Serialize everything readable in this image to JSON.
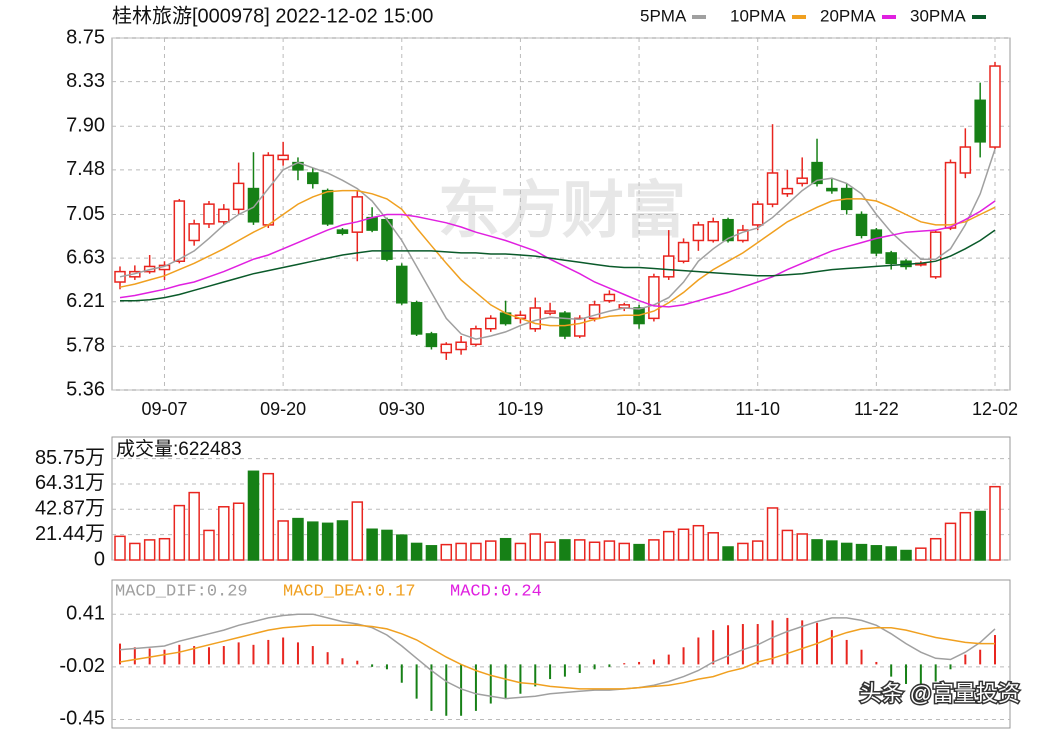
{
  "chart_data": [
    {
      "type": "candlestick",
      "title": "桂林旅游[000978] 2022-12-02 15:00",
      "watermark": "东方财富",
      "categories": [
        null,
        null,
        null,
        "09-07",
        null,
        null,
        null,
        null,
        null,
        null,
        null,
        "09-20",
        null,
        null,
        null,
        null,
        null,
        null,
        null,
        "09-30",
        null,
        null,
        null,
        null,
        null,
        null,
        null,
        "10-19",
        null,
        null,
        null,
        null,
        null,
        null,
        null,
        "10-31",
        null,
        null,
        null,
        null,
        null,
        null,
        null,
        "11-10",
        null,
        null,
        null,
        null,
        null,
        null,
        null,
        "11-22",
        null,
        null,
        null,
        null,
        null,
        null,
        null,
        "12-02"
      ],
      "open": [
        6.4,
        6.45,
        6.5,
        6.52,
        6.6,
        6.8,
        6.96,
        6.98,
        7.1,
        7.3,
        6.95,
        7.58,
        7.55,
        7.45,
        7.28,
        6.9,
        6.88,
        7.02,
        7.0,
        6.55,
        6.2,
        5.9,
        5.72,
        5.75,
        5.8,
        5.95,
        6.1,
        6.05,
        5.95,
        6.1,
        6.1,
        5.88,
        6.05,
        6.22,
        6.15,
        6.15,
        6.05,
        6.45,
        6.6,
        6.8,
        6.8,
        7.0,
        6.8,
        6.95,
        7.15,
        7.25,
        7.35,
        7.55,
        7.3,
        7.3,
        7.05,
        6.9,
        6.68,
        6.6,
        6.57,
        6.45,
        6.92,
        7.45,
        8.15,
        7.7
      ],
      "high": [
        6.55,
        6.56,
        6.66,
        6.6,
        7.2,
        7.0,
        7.18,
        7.15,
        7.55,
        7.65,
        7.65,
        7.75,
        7.6,
        7.5,
        7.3,
        6.92,
        7.28,
        7.12,
        7.02,
        6.58,
        6.22,
        5.92,
        5.82,
        5.88,
        5.98,
        6.08,
        6.22,
        6.12,
        6.25,
        6.2,
        6.12,
        6.08,
        6.22,
        6.32,
        6.2,
        6.18,
        6.48,
        6.9,
        6.82,
        6.98,
        7.02,
        7.02,
        6.95,
        7.18,
        7.92,
        7.48,
        7.6,
        7.78,
        7.4,
        7.35,
        7.08,
        6.92,
        6.7,
        6.62,
        6.6,
        6.9,
        7.58,
        7.88,
        8.32,
        8.52
      ],
      "low": [
        6.33,
        6.42,
        6.48,
        6.42,
        6.58,
        6.75,
        6.92,
        6.95,
        7.05,
        6.95,
        6.92,
        7.52,
        7.38,
        7.3,
        6.94,
        6.85,
        6.6,
        6.88,
        6.6,
        6.18,
        5.88,
        5.75,
        5.65,
        5.7,
        5.78,
        5.92,
        5.98,
        6.0,
        5.92,
        6.08,
        5.85,
        5.86,
        6.02,
        6.2,
        6.12,
        5.95,
        6.02,
        6.42,
        6.58,
        6.7,
        6.78,
        6.78,
        6.78,
        6.9,
        7.12,
        7.22,
        7.32,
        7.32,
        7.25,
        7.05,
        6.82,
        6.65,
        6.52,
        6.52,
        6.55,
        6.43,
        6.9,
        7.4,
        7.6,
        7.68
      ],
      "close": [
        6.5,
        6.5,
        6.55,
        6.56,
        7.18,
        6.96,
        7.15,
        7.1,
        7.35,
        6.98,
        7.62,
        7.62,
        7.48,
        7.35,
        6.96,
        6.87,
        7.22,
        6.9,
        6.62,
        6.2,
        5.9,
        5.78,
        5.8,
        5.82,
        5.95,
        6.05,
        6.0,
        6.08,
        6.15,
        6.12,
        5.88,
        6.05,
        6.18,
        6.28,
        6.18,
        6.0,
        6.45,
        6.65,
        6.78,
        6.95,
        6.98,
        6.8,
        6.9,
        7.15,
        7.45,
        7.3,
        7.4,
        7.35,
        7.28,
        7.1,
        6.85,
        6.68,
        6.58,
        6.55,
        6.58,
        6.88,
        7.55,
        7.7,
        7.75,
        8.48
      ],
      "up_color": "#e8251f",
      "down_color": "#168016",
      "lines": [
        {
          "name": "5PMA",
          "color": "#a0a0a0",
          "values": [
            6.45,
            6.48,
            6.52,
            6.55,
            6.62,
            6.7,
            6.82,
            6.95,
            7.05,
            7.12,
            7.3,
            7.48,
            7.55,
            7.5,
            7.45,
            7.38,
            7.3,
            7.18,
            7.0,
            6.8,
            6.55,
            6.3,
            6.05,
            5.9,
            5.85,
            5.88,
            5.92,
            5.98,
            6.03,
            6.06,
            6.05,
            6.04,
            6.08,
            6.12,
            6.15,
            6.14,
            6.18,
            6.25,
            6.4,
            6.6,
            6.72,
            6.82,
            6.88,
            6.92,
            7.02,
            7.15,
            7.28,
            7.38,
            7.4,
            7.35,
            7.25,
            7.05,
            6.88,
            6.75,
            6.62,
            6.62,
            6.72,
            6.95,
            7.25,
            7.68
          ]
        },
        {
          "name": "10PMA",
          "color": "#f0a020",
          "values": [
            6.35,
            6.38,
            6.42,
            6.46,
            6.52,
            6.58,
            6.65,
            6.72,
            6.8,
            6.88,
            6.95,
            7.05,
            7.15,
            7.22,
            7.27,
            7.28,
            7.28,
            7.25,
            7.2,
            7.1,
            6.92,
            6.75,
            6.58,
            6.42,
            6.3,
            6.18,
            6.1,
            6.05,
            6.0,
            5.98,
            5.98,
            6.0,
            6.04,
            6.07,
            6.08,
            6.08,
            6.12,
            6.2,
            6.3,
            6.42,
            6.52,
            6.6,
            6.68,
            6.78,
            6.88,
            6.98,
            7.05,
            7.12,
            7.18,
            7.2,
            7.2,
            7.18,
            7.12,
            7.05,
            6.98,
            6.95,
            6.95,
            6.98,
            7.05,
            7.12
          ]
        },
        {
          "name": "20PMA",
          "color": "#e020e0",
          "values": [
            6.25,
            6.27,
            6.3,
            6.33,
            6.37,
            6.4,
            6.45,
            6.5,
            6.56,
            6.62,
            6.66,
            6.72,
            6.78,
            6.84,
            6.9,
            6.95,
            6.98,
            7.02,
            7.05,
            7.05,
            7.03,
            7.0,
            6.97,
            6.93,
            6.88,
            6.84,
            6.8,
            6.75,
            6.7,
            6.62,
            6.55,
            6.48,
            6.4,
            6.34,
            6.28,
            6.22,
            6.17,
            6.16,
            6.18,
            6.22,
            6.26,
            6.3,
            6.35,
            6.4,
            6.45,
            6.52,
            6.58,
            6.64,
            6.7,
            6.74,
            6.78,
            6.82,
            6.85,
            6.88,
            6.89,
            6.9,
            6.93,
            7.0,
            7.08,
            7.18
          ]
        },
        {
          "name": "30PMA",
          "color": "#0a5a2a",
          "values": [
            6.22,
            6.22,
            6.23,
            6.25,
            6.28,
            6.32,
            6.36,
            6.4,
            6.44,
            6.48,
            6.51,
            6.54,
            6.57,
            6.6,
            6.63,
            6.66,
            6.68,
            6.7,
            6.7,
            6.7,
            6.7,
            6.7,
            6.69,
            6.68,
            6.68,
            6.67,
            6.67,
            6.66,
            6.65,
            6.63,
            6.61,
            6.59,
            6.57,
            6.55,
            6.54,
            6.54,
            6.53,
            6.52,
            6.51,
            6.5,
            6.49,
            6.48,
            6.47,
            6.46,
            6.46,
            6.47,
            6.48,
            6.5,
            6.52,
            6.53,
            6.54,
            6.55,
            6.56,
            6.57,
            6.58,
            6.6,
            6.65,
            6.72,
            6.8,
            6.9
          ]
        }
      ],
      "ylim": [
        5.36,
        8.75
      ],
      "yticks": [
        8.75,
        8.33,
        {
          "value": 7.9,
          "label": "7.90"
        },
        7.48,
        7.05,
        6.63,
        6.21,
        5.78,
        5.36
      ],
      "grid": true
    },
    {
      "type": "volume",
      "label": "成交量:622483",
      "values": [
        20,
        14,
        17,
        18,
        46,
        57,
        25,
        45,
        48,
        75,
        73,
        33,
        35,
        32,
        31,
        33,
        49,
        26,
        25,
        21,
        14,
        12,
        13,
        14,
        14,
        16,
        18,
        14,
        22,
        15,
        17,
        17,
        15,
        16,
        14,
        13,
        17,
        24,
        26,
        29,
        23,
        11,
        14,
        16,
        44,
        25,
        22,
        17,
        16,
        14,
        13,
        12,
        11,
        8,
        10,
        18,
        31,
        40,
        41,
        62
      ],
      "ylim": [
        0,
        104
      ],
      "yticks": [
        {
          "value": 85.75,
          "label": "85.75万"
        },
        {
          "value": 64.31,
          "label": "64.31万"
        },
        {
          "value": 42.87,
          "label": "42.87万"
        },
        {
          "value": 21.44,
          "label": "21.44万"
        },
        0
      ],
      "grid": true
    },
    {
      "type": "macd",
      "up_color": "#e8251f",
      "down_color": "#168016",
      "series": [
        {
          "name": "MACD_DIF:0.29",
          "color": "#a0a0a0",
          "values": [
            0.12,
            0.13,
            0.14,
            0.15,
            0.19,
            0.22,
            0.25,
            0.28,
            0.32,
            0.35,
            0.38,
            0.4,
            0.41,
            0.41,
            0.38,
            0.35,
            0.33,
            0.3,
            0.24,
            0.15,
            0.05,
            -0.05,
            -0.14,
            -0.2,
            -0.24,
            -0.26,
            -0.28,
            -0.27,
            -0.26,
            -0.24,
            -0.23,
            -0.22,
            -0.21,
            -0.21,
            -0.2,
            -0.19,
            -0.17,
            -0.14,
            -0.1,
            -0.05,
            0.02,
            0.07,
            0.12,
            0.16,
            0.22,
            0.27,
            0.31,
            0.35,
            0.38,
            0.38,
            0.36,
            0.32,
            0.25,
            0.17,
            0.1,
            0.05,
            0.04,
            0.1,
            0.18,
            0.29
          ]
        },
        {
          "name": "MACD_DEA:0.17",
          "color": "#f0a020",
          "values": [
            0.02,
            0.04,
            0.06,
            0.08,
            0.1,
            0.13,
            0.16,
            0.19,
            0.22,
            0.25,
            0.28,
            0.3,
            0.31,
            0.32,
            0.32,
            0.32,
            0.32,
            0.31,
            0.29,
            0.25,
            0.2,
            0.13,
            0.06,
            0.0,
            -0.05,
            -0.09,
            -0.12,
            -0.15,
            -0.16,
            -0.18,
            -0.19,
            -0.2,
            -0.2,
            -0.2,
            -0.2,
            -0.19,
            -0.18,
            -0.17,
            -0.15,
            -0.12,
            -0.1,
            -0.06,
            -0.03,
            0.02,
            0.05,
            0.09,
            0.13,
            0.17,
            0.22,
            0.26,
            0.29,
            0.3,
            0.3,
            0.28,
            0.25,
            0.22,
            0.2,
            0.18,
            0.17,
            0.17
          ]
        },
        {
          "name": "MACD:0.24",
          "color": "#e020e0",
          "values": [
            0.17,
            0.14,
            0.13,
            0.12,
            0.16,
            0.15,
            0.14,
            0.15,
            0.18,
            0.16,
            0.2,
            0.22,
            0.18,
            0.15,
            0.1,
            0.05,
            0.03,
            -0.02,
            -0.04,
            -0.15,
            -0.28,
            -0.38,
            -0.42,
            -0.42,
            -0.38,
            -0.32,
            -0.28,
            -0.24,
            -0.18,
            -0.12,
            -0.1,
            -0.07,
            -0.04,
            -0.02,
            0.01,
            0.02,
            0.04,
            0.08,
            0.14,
            0.22,
            0.28,
            0.32,
            0.33,
            0.33,
            0.36,
            0.38,
            0.36,
            0.34,
            0.28,
            0.2,
            0.12,
            0.02,
            -0.1,
            -0.16,
            -0.18,
            -0.14,
            -0.04,
            0.08,
            0.12,
            0.24
          ]
        }
      ],
      "ylim": [
        -0.52,
        0.69
      ],
      "yticks": [
        0.41,
        -0.02,
        -0.45
      ],
      "grid": true
    }
  ],
  "footer": "头条 @富量投资"
}
